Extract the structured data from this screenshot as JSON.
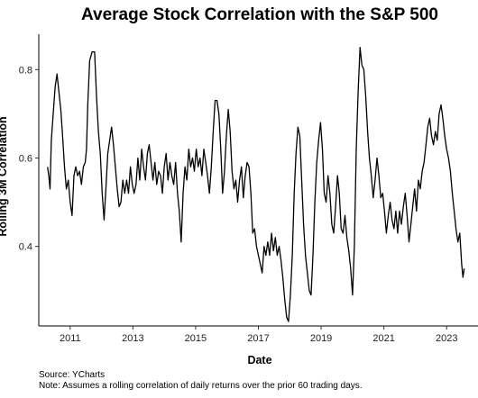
{
  "chart_data": {
    "type": "line",
    "title": "Average Stock Correlation with the S&P 500",
    "xlabel": "Date",
    "ylabel": "Rolling 3M Correlation",
    "xlim": [
      2010.0,
      2024.0
    ],
    "ylim": [
      0.22,
      0.88
    ],
    "x_ticks": [
      "2011",
      "2013",
      "2015",
      "2017",
      "2019",
      "2021",
      "2023"
    ],
    "y_ticks": [
      "0.4",
      "0.6",
      "0.8"
    ],
    "grid": false,
    "series": [
      {
        "color": "#000000",
        "points": [
          [
            2010.28,
            0.58
          ],
          [
            2010.32,
            0.56
          ],
          [
            2010.36,
            0.53
          ],
          [
            2010.4,
            0.64
          ],
          [
            2010.46,
            0.7
          ],
          [
            2010.52,
            0.76
          ],
          [
            2010.58,
            0.79
          ],
          [
            2010.64,
            0.75
          ],
          [
            2010.7,
            0.71
          ],
          [
            2010.76,
            0.65
          ],
          [
            2010.82,
            0.58
          ],
          [
            2010.88,
            0.53
          ],
          [
            2010.94,
            0.55
          ],
          [
            2011.0,
            0.5
          ],
          [
            2011.06,
            0.47
          ],
          [
            2011.12,
            0.56
          ],
          [
            2011.18,
            0.58
          ],
          [
            2011.24,
            0.56
          ],
          [
            2011.3,
            0.57
          ],
          [
            2011.36,
            0.54
          ],
          [
            2011.42,
            0.58
          ],
          [
            2011.48,
            0.59
          ],
          [
            2011.52,
            0.62
          ],
          [
            2011.56,
            0.72
          ],
          [
            2011.62,
            0.82
          ],
          [
            2011.7,
            0.84
          ],
          [
            2011.78,
            0.84
          ],
          [
            2011.84,
            0.74
          ],
          [
            2011.9,
            0.66
          ],
          [
            2011.96,
            0.61
          ],
          [
            2012.02,
            0.52
          ],
          [
            2012.08,
            0.46
          ],
          [
            2012.14,
            0.53
          ],
          [
            2012.2,
            0.61
          ],
          [
            2012.26,
            0.64
          ],
          [
            2012.32,
            0.67
          ],
          [
            2012.38,
            0.63
          ],
          [
            2012.44,
            0.58
          ],
          [
            2012.5,
            0.53
          ],
          [
            2012.56,
            0.49
          ],
          [
            2012.62,
            0.5
          ],
          [
            2012.68,
            0.55
          ],
          [
            2012.74,
            0.52
          ],
          [
            2012.8,
            0.55
          ],
          [
            2012.86,
            0.52
          ],
          [
            2012.92,
            0.58
          ],
          [
            2012.98,
            0.54
          ],
          [
            2013.04,
            0.52
          ],
          [
            2013.1,
            0.54
          ],
          [
            2013.16,
            0.6
          ],
          [
            2013.22,
            0.55
          ],
          [
            2013.28,
            0.62
          ],
          [
            2013.34,
            0.58
          ],
          [
            2013.4,
            0.55
          ],
          [
            2013.46,
            0.61
          ],
          [
            2013.52,
            0.63
          ],
          [
            2013.58,
            0.59
          ],
          [
            2013.64,
            0.55
          ],
          [
            2013.7,
            0.59
          ],
          [
            2013.76,
            0.54
          ],
          [
            2013.82,
            0.57
          ],
          [
            2013.88,
            0.56
          ],
          [
            2013.94,
            0.52
          ],
          [
            2014.0,
            0.58
          ],
          [
            2014.06,
            0.61
          ],
          [
            2014.12,
            0.55
          ],
          [
            2014.18,
            0.59
          ],
          [
            2014.24,
            0.56
          ],
          [
            2014.3,
            0.54
          ],
          [
            2014.36,
            0.59
          ],
          [
            2014.42,
            0.52
          ],
          [
            2014.48,
            0.48
          ],
          [
            2014.54,
            0.41
          ],
          [
            2014.6,
            0.52
          ],
          [
            2014.66,
            0.58
          ],
          [
            2014.72,
            0.55
          ],
          [
            2014.78,
            0.62
          ],
          [
            2014.84,
            0.58
          ],
          [
            2014.9,
            0.6
          ],
          [
            2014.96,
            0.57
          ],
          [
            2015.02,
            0.62
          ],
          [
            2015.08,
            0.58
          ],
          [
            2015.14,
            0.6
          ],
          [
            2015.2,
            0.56
          ],
          [
            2015.26,
            0.62
          ],
          [
            2015.32,
            0.59
          ],
          [
            2015.38,
            0.56
          ],
          [
            2015.44,
            0.52
          ],
          [
            2015.5,
            0.58
          ],
          [
            2015.56,
            0.66
          ],
          [
            2015.62,
            0.73
          ],
          [
            2015.68,
            0.73
          ],
          [
            2015.74,
            0.7
          ],
          [
            2015.8,
            0.62
          ],
          [
            2015.86,
            0.52
          ],
          [
            2015.92,
            0.57
          ],
          [
            2015.98,
            0.65
          ],
          [
            2016.04,
            0.71
          ],
          [
            2016.1,
            0.66
          ],
          [
            2016.16,
            0.57
          ],
          [
            2016.22,
            0.53
          ],
          [
            2016.28,
            0.55
          ],
          [
            2016.34,
            0.5
          ],
          [
            2016.4,
            0.55
          ],
          [
            2016.46,
            0.58
          ],
          [
            2016.52,
            0.51
          ],
          [
            2016.58,
            0.56
          ],
          [
            2016.64,
            0.59
          ],
          [
            2016.7,
            0.58
          ],
          [
            2016.76,
            0.52
          ],
          [
            2016.82,
            0.43
          ],
          [
            2016.88,
            0.44
          ],
          [
            2016.94,
            0.4
          ],
          [
            2017.0,
            0.38
          ],
          [
            2017.06,
            0.36
          ],
          [
            2017.12,
            0.34
          ],
          [
            2017.18,
            0.4
          ],
          [
            2017.24,
            0.38
          ],
          [
            2017.3,
            0.41
          ],
          [
            2017.36,
            0.38
          ],
          [
            2017.42,
            0.43
          ],
          [
            2017.48,
            0.39
          ],
          [
            2017.54,
            0.42
          ],
          [
            2017.6,
            0.38
          ],
          [
            2017.66,
            0.4
          ],
          [
            2017.72,
            0.37
          ],
          [
            2017.78,
            0.33
          ],
          [
            2017.84,
            0.28
          ],
          [
            2017.9,
            0.24
          ],
          [
            2017.96,
            0.23
          ],
          [
            2018.02,
            0.29
          ],
          [
            2018.08,
            0.38
          ],
          [
            2018.14,
            0.52
          ],
          [
            2018.2,
            0.61
          ],
          [
            2018.26,
            0.67
          ],
          [
            2018.32,
            0.65
          ],
          [
            2018.38,
            0.55
          ],
          [
            2018.44,
            0.45
          ],
          [
            2018.5,
            0.38
          ],
          [
            2018.56,
            0.34
          ],
          [
            2018.62,
            0.3
          ],
          [
            2018.68,
            0.29
          ],
          [
            2018.74,
            0.38
          ],
          [
            2018.8,
            0.5
          ],
          [
            2018.86,
            0.59
          ],
          [
            2018.92,
            0.64
          ],
          [
            2018.98,
            0.68
          ],
          [
            2019.04,
            0.62
          ],
          [
            2019.1,
            0.52
          ],
          [
            2019.16,
            0.5
          ],
          [
            2019.22,
            0.56
          ],
          [
            2019.28,
            0.52
          ],
          [
            2019.34,
            0.45
          ],
          [
            2019.4,
            0.43
          ],
          [
            2019.46,
            0.49
          ],
          [
            2019.52,
            0.56
          ],
          [
            2019.58,
            0.52
          ],
          [
            2019.64,
            0.44
          ],
          [
            2019.7,
            0.43
          ],
          [
            2019.76,
            0.47
          ],
          [
            2019.82,
            0.42
          ],
          [
            2019.88,
            0.39
          ],
          [
            2019.94,
            0.35
          ],
          [
            2020.0,
            0.29
          ],
          [
            2020.06,
            0.4
          ],
          [
            2020.12,
            0.62
          ],
          [
            2020.18,
            0.75
          ],
          [
            2020.24,
            0.85
          ],
          [
            2020.3,
            0.81
          ],
          [
            2020.36,
            0.8
          ],
          [
            2020.42,
            0.74
          ],
          [
            2020.48,
            0.66
          ],
          [
            2020.54,
            0.6
          ],
          [
            2020.6,
            0.56
          ],
          [
            2020.66,
            0.51
          ],
          [
            2020.72,
            0.55
          ],
          [
            2020.78,
            0.6
          ],
          [
            2020.84,
            0.56
          ],
          [
            2020.9,
            0.51
          ],
          [
            2020.96,
            0.52
          ],
          [
            2021.02,
            0.48
          ],
          [
            2021.08,
            0.43
          ],
          [
            2021.14,
            0.47
          ],
          [
            2021.2,
            0.5
          ],
          [
            2021.26,
            0.46
          ],
          [
            2021.32,
            0.44
          ],
          [
            2021.38,
            0.48
          ],
          [
            2021.44,
            0.43
          ],
          [
            2021.5,
            0.48
          ],
          [
            2021.56,
            0.45
          ],
          [
            2021.62,
            0.49
          ],
          [
            2021.68,
            0.52
          ],
          [
            2021.74,
            0.47
          ],
          [
            2021.8,
            0.41
          ],
          [
            2021.86,
            0.45
          ],
          [
            2021.92,
            0.49
          ],
          [
            2021.98,
            0.53
          ],
          [
            2022.04,
            0.48
          ],
          [
            2022.1,
            0.55
          ],
          [
            2022.16,
            0.53
          ],
          [
            2022.22,
            0.57
          ],
          [
            2022.28,
            0.59
          ],
          [
            2022.34,
            0.63
          ],
          [
            2022.4,
            0.67
          ],
          [
            2022.46,
            0.69
          ],
          [
            2022.52,
            0.65
          ],
          [
            2022.58,
            0.63
          ],
          [
            2022.64,
            0.66
          ],
          [
            2022.7,
            0.64
          ],
          [
            2022.76,
            0.7
          ],
          [
            2022.82,
            0.72
          ],
          [
            2022.88,
            0.69
          ],
          [
            2022.94,
            0.65
          ],
          [
            2023.0,
            0.62
          ],
          [
            2023.06,
            0.6
          ],
          [
            2023.12,
            0.57
          ],
          [
            2023.18,
            0.52
          ],
          [
            2023.24,
            0.48
          ],
          [
            2023.3,
            0.44
          ],
          [
            2023.36,
            0.41
          ],
          [
            2023.42,
            0.43
          ],
          [
            2023.48,
            0.36
          ],
          [
            2023.52,
            0.33
          ],
          [
            2023.56,
            0.35
          ]
        ]
      }
    ],
    "notes": {
      "source": "Source: YCharts",
      "note": "Note: Assumes a rolling correlation of daily returns over the prior 60 trading days."
    }
  }
}
